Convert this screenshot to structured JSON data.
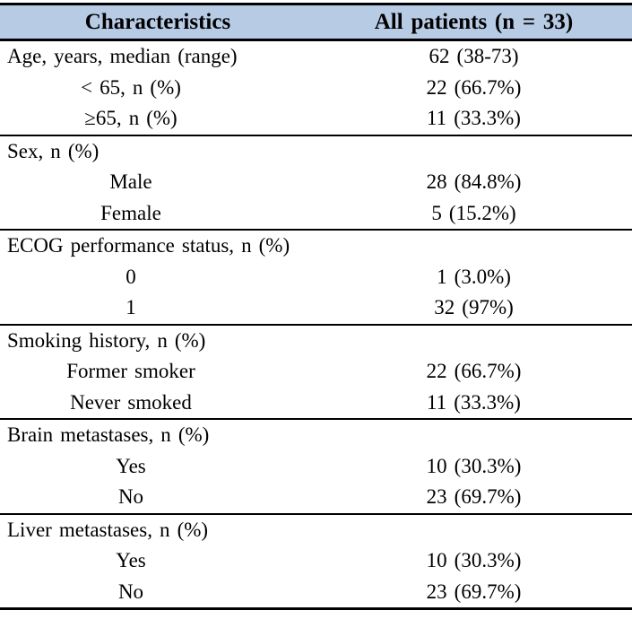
{
  "colors": {
    "header_bg": "#b7cbe5",
    "border": "#000000",
    "text": "#000000"
  },
  "header": {
    "characteristics": "Characteristics",
    "all_patients": "All patients (n = 33)"
  },
  "sections": [
    {
      "rows": [
        {
          "label": "Age, years, median (range)",
          "value": "62 (38-73)"
        },
        {
          "label": "< 65, n (%)",
          "value": "22 (66.7%)"
        },
        {
          "label": "≥65, n (%)",
          "value": "11 (33.3%)"
        }
      ]
    },
    {
      "title": "Sex, n (%)",
      "rows": [
        {
          "label": "Male",
          "value": "28 (84.8%)"
        },
        {
          "label": "Female",
          "value": "5 (15.2%)"
        }
      ]
    },
    {
      "title": "ECOG performance status, n (%)",
      "rows": [
        {
          "label": "0",
          "value": "1 (3.0%)"
        },
        {
          "label": "1",
          "value": "32 (97%)"
        }
      ]
    },
    {
      "title": "Smoking history, n (%)",
      "rows": [
        {
          "label": "Former smoker",
          "value": "22 (66.7%)"
        },
        {
          "label": "Never smoked",
          "value": "11 (33.3%)"
        }
      ]
    },
    {
      "title": "Brain metastases, n (%)",
      "rows": [
        {
          "label": "Yes",
          "value": "10 (30.3%)"
        },
        {
          "label": "No",
          "value": "23 (69.7%)"
        }
      ]
    },
    {
      "title": "Liver metastases, n (%)",
      "rows": [
        {
          "label": "Yes",
          "value": "10 (30.3%)"
        },
        {
          "label": "No",
          "value": "23 (69.7%)"
        }
      ]
    }
  ]
}
